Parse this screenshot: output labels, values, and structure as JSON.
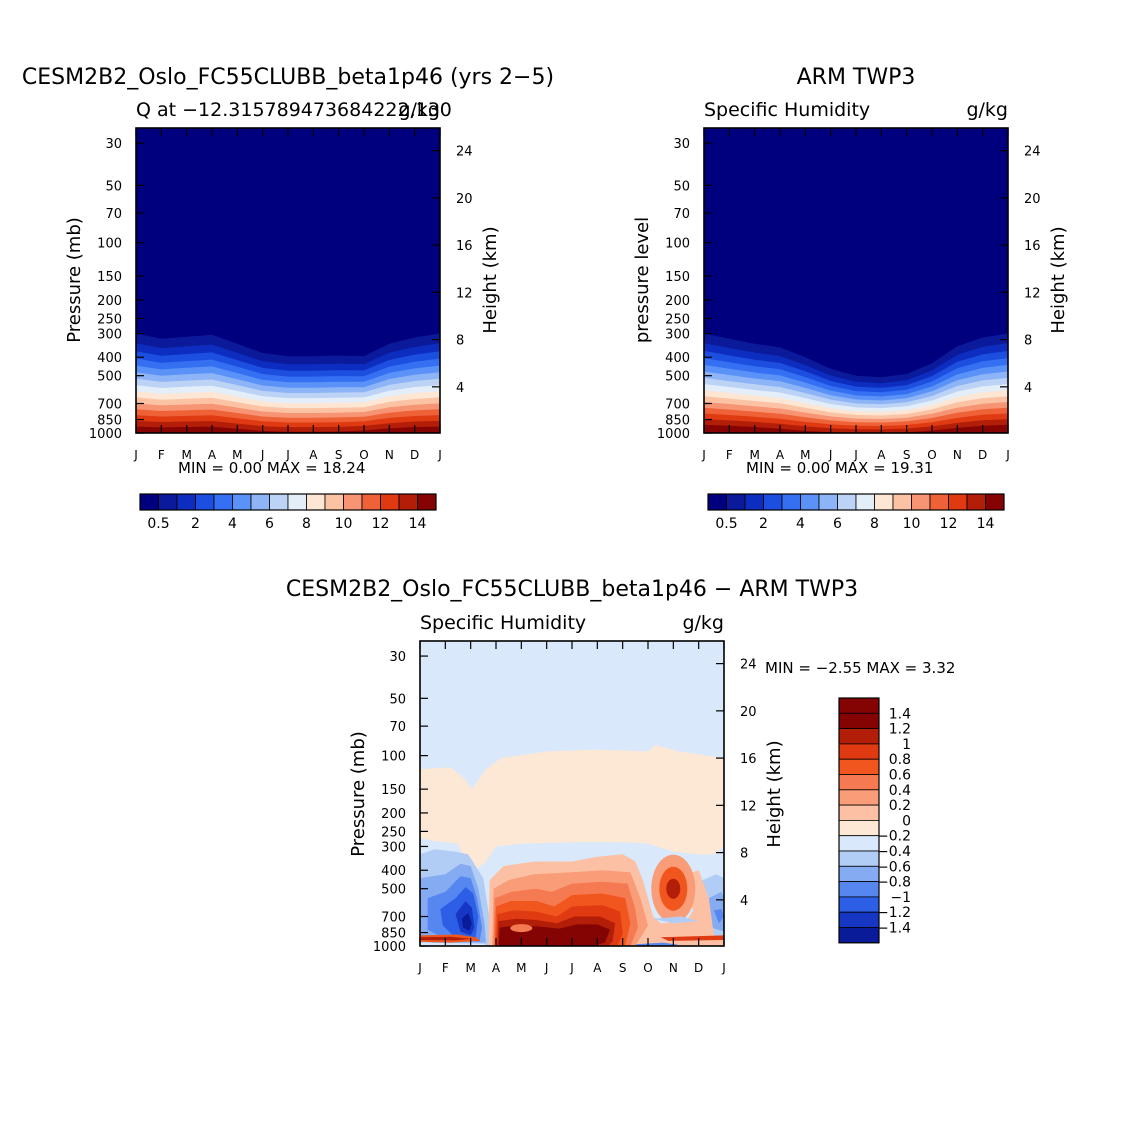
{
  "months": [
    "J",
    "F",
    "M",
    "A",
    "M",
    "J",
    "J",
    "A",
    "S",
    "O",
    "N",
    "D",
    "J"
  ],
  "pressure_ticks": [
    "30",
    "50",
    "70",
    "100",
    "150",
    "200",
    "250",
    "300",
    "400",
    "500",
    "700",
    "850",
    "1000"
  ],
  "height_ticks": [
    "24",
    "20",
    "16",
    "12",
    "8",
    "4"
  ],
  "top_colorbar_labels": [
    "0.5",
    "2",
    "4",
    "6",
    "8",
    "10",
    "12",
    "14"
  ],
  "diff_colorbar_labels": [
    "1.4",
    "1.2",
    "1",
    "0.8",
    "0.6",
    "0.4",
    "0.2",
    "0",
    "−0.2",
    "−0.4",
    "−0.6",
    "−0.8",
    "−1",
    "−1.2",
    "−1.4"
  ],
  "colors": {
    "seq": [
      "#00007f",
      "#0a1a9a",
      "#0c2dbf",
      "#1c4ee0",
      "#3570f3",
      "#5b92f7",
      "#8db4f7",
      "#bcd3f5",
      "#e4eef9",
      "#fde6d3",
      "#fbc3a4",
      "#f69474",
      "#ef6238",
      "#df3a12",
      "#b31e08",
      "#860303"
    ],
    "diff": [
      "#840404",
      "#b31e08",
      "#df3a12",
      "#f0561e",
      "#f57a52",
      "#f99c78",
      "#fcc1a4",
      "#fde8d6",
      "#d9e8fa",
      "#b2cdf5",
      "#85acf2",
      "#5686f0",
      "#2c5fe6",
      "#1637c4",
      "#0a1b9a"
    ]
  },
  "panels": [
    {
      "title": "CESM2B2_Oslo_FC55CLUBB_beta1p46 (yrs 2−5)",
      "left": "Q at −12.315789473684222,130",
      "right": "g/kg",
      "ylabel": "Pressure  (mb)",
      "ylabel2": "Height  (km)",
      "minmax": "MIN =     0.00  MAX =    18.24"
    },
    {
      "title": "ARM  TWP3",
      "left": "Specific  Humidity",
      "right": "g/kg",
      "ylabel": "pressure  level",
      "ylabel2": "Height  (km)",
      "minmax": "MIN =     0.00  MAX =    19.31"
    },
    {
      "title": "CESM2B2_Oslo_FC55CLUBB_beta1p46 − ARM  TWP3",
      "left": "Specific  Humidity",
      "right": "g/kg",
      "ylabel": "Pressure  (mb)",
      "ylabel2": "Height  (km)",
      "minmax": "MIN =    −2.55  MAX =      3.32"
    }
  ],
  "chart_data": [
    {
      "type": "heatmap",
      "title": "CESM2B2_Oslo_FC55CLUBB_beta1p46 (yrs 2−5)",
      "variable": "Q",
      "units": "g/kg",
      "x": "month",
      "y": "pressure (mb)",
      "ylim": [
        1000,
        25
      ],
      "min": 0.0,
      "max": 18.24,
      "contour_levels": [
        0.5,
        1,
        2,
        3,
        4,
        5,
        6,
        7,
        8,
        9,
        10,
        11,
        12,
        13,
        14
      ],
      "surface_value_by_month": [
        17,
        16,
        16.5,
        17,
        16,
        15,
        14.5,
        14.5,
        14.5,
        15,
        16,
        17,
        17
      ]
    },
    {
      "type": "heatmap",
      "title": "ARM  TWP3",
      "variable": "Specific Humidity",
      "units": "g/kg",
      "x": "month",
      "y": "pressure level",
      "ylim": [
        1000,
        25
      ],
      "min": 0.0,
      "max": 19.31,
      "contour_levels": [
        0.5,
        1,
        2,
        3,
        4,
        5,
        6,
        7,
        8,
        9,
        10,
        11,
        12,
        13,
        14
      ],
      "surface_value_by_month": [
        18,
        17.5,
        17,
        16,
        14,
        11,
        9,
        9,
        11,
        14,
        17,
        18,
        18
      ]
    },
    {
      "type": "heatmap",
      "title": "CESM2B2_Oslo_FC55CLUBB_beta1p46 − ARM  TWP3",
      "variable": "Specific Humidity",
      "units": "g/kg",
      "x": "month",
      "y": "pressure (mb)",
      "ylim": [
        1000,
        25
      ],
      "min": -2.55,
      "max": 3.32,
      "contour_levels": [
        -1.4,
        -1.2,
        -1,
        -0.8,
        -0.6,
        -0.4,
        -0.2,
        0,
        0.2,
        0.4,
        0.6,
        0.8,
        1,
        1.2,
        1.4
      ]
    }
  ]
}
